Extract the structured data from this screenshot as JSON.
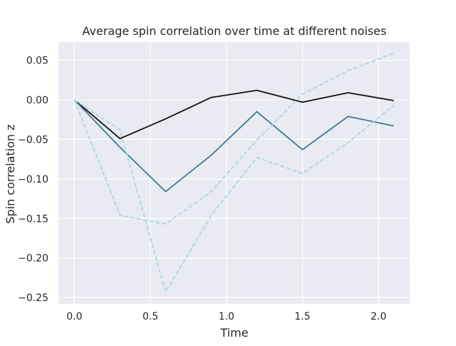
{
  "chart_data": {
    "type": "line",
    "title": "Average spin correlation over time at different noises",
    "xlabel": "Time",
    "ylabel": "Spin correlation z",
    "xlim": [
      -0.105,
      2.205
    ],
    "ylim": [
      -0.258,
      0.073
    ],
    "xticks": [
      0.0,
      0.5,
      1.0,
      1.5,
      2.0
    ],
    "xtick_labels": [
      "0.0",
      "0.5",
      "1.0",
      "1.5",
      "2.0"
    ],
    "yticks": [
      0.05,
      0.0,
      -0.05,
      -0.1,
      -0.15,
      -0.2,
      -0.25
    ],
    "ytick_labels": [
      "0.05",
      "0.00",
      "−0.05",
      "−0.10",
      "−0.15",
      "−0.20",
      "−0.25"
    ],
    "grid": true,
    "x": [
      0.0,
      0.3,
      0.6,
      0.9,
      1.2,
      1.5,
      1.8,
      2.1
    ],
    "series": [
      {
        "color": "#111111",
        "style": "solid",
        "values": [
          0.0,
          -0.049,
          -0.024,
          0.003,
          0.012,
          -0.003,
          0.009,
          -0.001
        ]
      },
      {
        "color": "#3f7a96",
        "style": "solid",
        "values": [
          0.0,
          -0.06,
          -0.116,
          -0.07,
          -0.015,
          -0.063,
          -0.021,
          -0.033
        ]
      },
      {
        "color": "#a9d6e5",
        "style": "dashed",
        "values": [
          0.0,
          -0.146,
          -0.157,
          -0.116,
          -0.051,
          0.007,
          0.037,
          0.059
        ]
      },
      {
        "color": "#a9d6e5",
        "style": "dashed",
        "values": [
          0.0,
          -0.038,
          -0.243,
          -0.146,
          -0.073,
          -0.093,
          -0.054,
          -0.007
        ]
      }
    ]
  }
}
